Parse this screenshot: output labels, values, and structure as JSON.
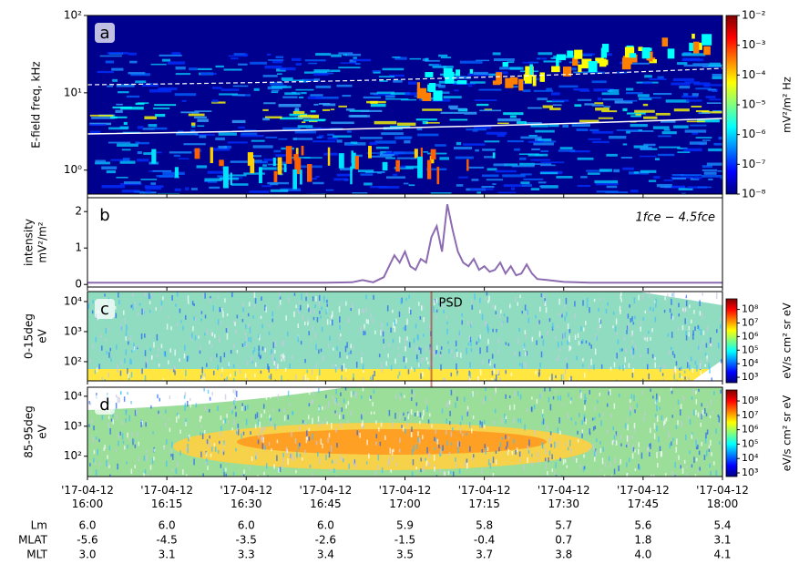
{
  "chart_data": [
    {
      "type": "spectrogram",
      "panel_label": "a",
      "ylabel": [
        "E-field freq, kHz"
      ],
      "yscale": "log",
      "ylim": [
        0.49,
        100
      ],
      "yticks": [
        {
          "value": 1,
          "label": "10⁰"
        },
        {
          "value": 10,
          "label": "10¹"
        },
        {
          "value": 100,
          "label": "10²"
        }
      ],
      "colorbar": {
        "label": "mV²/m² Hz",
        "clim": [
          1e-08,
          0.01
        ],
        "cticks": [
          {
            "value": 1e-08,
            "label": "10⁻⁸"
          },
          {
            "value": 1e-07,
            "label": "10⁻⁷"
          },
          {
            "value": 1e-06,
            "label": "10⁻⁶"
          },
          {
            "value": 1e-05,
            "label": "10⁻⁵"
          },
          {
            "value": 0.0001,
            "label": "10⁻⁴"
          },
          {
            "value": 0.001,
            "label": "10⁻³"
          },
          {
            "value": 0.01,
            "label": "10⁻²"
          }
        ]
      }
    },
    {
      "type": "line",
      "panel_label": "b",
      "ylabel": [
        "intensity",
        "mV²/m²"
      ],
      "annotation": "1fce − 4.5fce",
      "color": "#8c6bb1",
      "ylim": [
        -0.07,
        2.38
      ],
      "yticks": [
        0,
        1,
        2
      ],
      "x": [
        "17-04-12 16:00",
        "17-04-12 16:30",
        "17-04-12 16:45",
        "17-04-12 16:50",
        "17-04-12 16:52",
        "17-04-12 16:54",
        "17-04-12 16:56",
        "17-04-12 16:57",
        "17-04-12 16:58",
        "17-04-12 16:59",
        "17-04-12 17:00",
        "17-04-12 17:01",
        "17-04-12 17:02",
        "17-04-12 17:03",
        "17-04-12 17:04",
        "17-04-12 17:05",
        "17-04-12 17:06",
        "17-04-12 17:07",
        "17-04-12 17:08",
        "17-04-12 17:09",
        "17-04-12 17:10",
        "17-04-12 17:11",
        "17-04-12 17:12",
        "17-04-12 17:13",
        "17-04-12 17:14",
        "17-04-12 17:15",
        "17-04-12 17:16",
        "17-04-12 17:17",
        "17-04-12 17:18",
        "17-04-12 17:19",
        "17-04-12 17:20",
        "17-04-12 17:21",
        "17-04-12 17:22",
        "17-04-12 17:23",
        "17-04-12 17:24",
        "17-04-12 17:25",
        "17-04-12 17:27",
        "17-04-12 17:30",
        "17-04-12 17:35",
        "17-04-12 18:00"
      ],
      "values": [
        0.05,
        0.05,
        0.05,
        0.06,
        0.12,
        0.06,
        0.2,
        0.5,
        0.8,
        0.6,
        0.9,
        0.5,
        0.4,
        0.7,
        0.6,
        1.3,
        1.6,
        0.9,
        2.2,
        1.5,
        0.9,
        0.6,
        0.5,
        0.7,
        0.4,
        0.5,
        0.35,
        0.4,
        0.6,
        0.3,
        0.5,
        0.25,
        0.3,
        0.55,
        0.3,
        0.15,
        0.12,
        0.07,
        0.05,
        0.05
      ]
    },
    {
      "type": "spectrogram",
      "panel_label": "c",
      "ylabel": [
        "0-15deg",
        "eV"
      ],
      "yscale": "log",
      "ylim": [
        23,
        21500
      ],
      "yticks": [
        {
          "value": 100,
          "label": "10²"
        },
        {
          "value": 1000,
          "label": "10³"
        },
        {
          "value": 10000,
          "label": "10⁴"
        }
      ],
      "annotation": {
        "text": "PSD",
        "x": "17-04-12 17:05"
      },
      "colorbar": {
        "label": "eV/s cm² sr eV",
        "clim": [
          400,
          600000000
        ],
        "cticks": [
          {
            "value": 1000,
            "label": "10³"
          },
          {
            "value": 10000,
            "label": "10⁴"
          },
          {
            "value": 100000,
            "label": "10⁵"
          },
          {
            "value": 1000000,
            "label": "10⁶"
          },
          {
            "value": 10000000,
            "label": "10⁷"
          },
          {
            "value": 100000000,
            "label": "10⁸"
          }
        ]
      }
    },
    {
      "type": "spectrogram",
      "panel_label": "d",
      "ylabel": [
        "85-95deg",
        "eV"
      ],
      "yscale": "log",
      "ylim": [
        21,
        20000
      ],
      "yticks": [
        {
          "value": 100,
          "label": "10²"
        },
        {
          "value": 1000,
          "label": "10³"
        },
        {
          "value": 10000,
          "label": "10⁴"
        }
      ],
      "colorbar": {
        "label": "eV/s cm² sr eV",
        "clim": [
          560,
          580000000
        ],
        "cticks": [
          {
            "value": 1000,
            "label": "10³"
          },
          {
            "value": 10000,
            "label": "10⁴"
          },
          {
            "value": 100000,
            "label": "10⁵"
          },
          {
            "value": 1000000,
            "label": "10⁶"
          },
          {
            "value": 10000000,
            "label": "10⁷"
          },
          {
            "value": 100000000,
            "label": "10⁸"
          }
        ]
      }
    }
  ],
  "time_axis": {
    "xlim": [
      "17-04-12 16:00",
      "17-04-12 18:00"
    ],
    "xticks": [
      {
        "value": "17-04-12 16:00",
        "label": "'17-04-12\n16:00"
      },
      {
        "value": "17-04-12 16:15",
        "label": "'17-04-12\n16:15"
      },
      {
        "value": "17-04-12 16:30",
        "label": "'17-04-12\n16:30"
      },
      {
        "value": "17-04-12 16:45",
        "label": "'17-04-12\n16:45"
      },
      {
        "value": "17-04-12 17:00",
        "label": "'17-04-12\n17:00"
      },
      {
        "value": "17-04-12 17:15",
        "label": "'17-04-12\n17:15"
      },
      {
        "value": "17-04-12 17:30",
        "label": "'17-04-12\n17:30"
      },
      {
        "value": "17-04-12 17:45",
        "label": "'17-04-12\n17:45"
      },
      {
        "value": "17-04-12 18:00",
        "label": "'17-04-12\n18:00"
      }
    ]
  },
  "orbit": {
    "rows": [
      {
        "label": "Lm",
        "values": [
          "6.0",
          "6.0",
          "6.0",
          "6.0",
          "5.9",
          "5.8",
          "5.7",
          "5.6",
          "5.4"
        ]
      },
      {
        "label": "MLAT",
        "values": [
          "-5.6",
          "-4.5",
          "-3.5",
          "-2.6",
          "-1.5",
          "-0.4",
          "0.7",
          "1.8",
          "3.1"
        ]
      },
      {
        "label": "MLT",
        "values": [
          "3.0",
          "3.1",
          "3.3",
          "3.4",
          "3.5",
          "3.7",
          "3.8",
          "4.0",
          "4.1"
        ]
      }
    ]
  }
}
